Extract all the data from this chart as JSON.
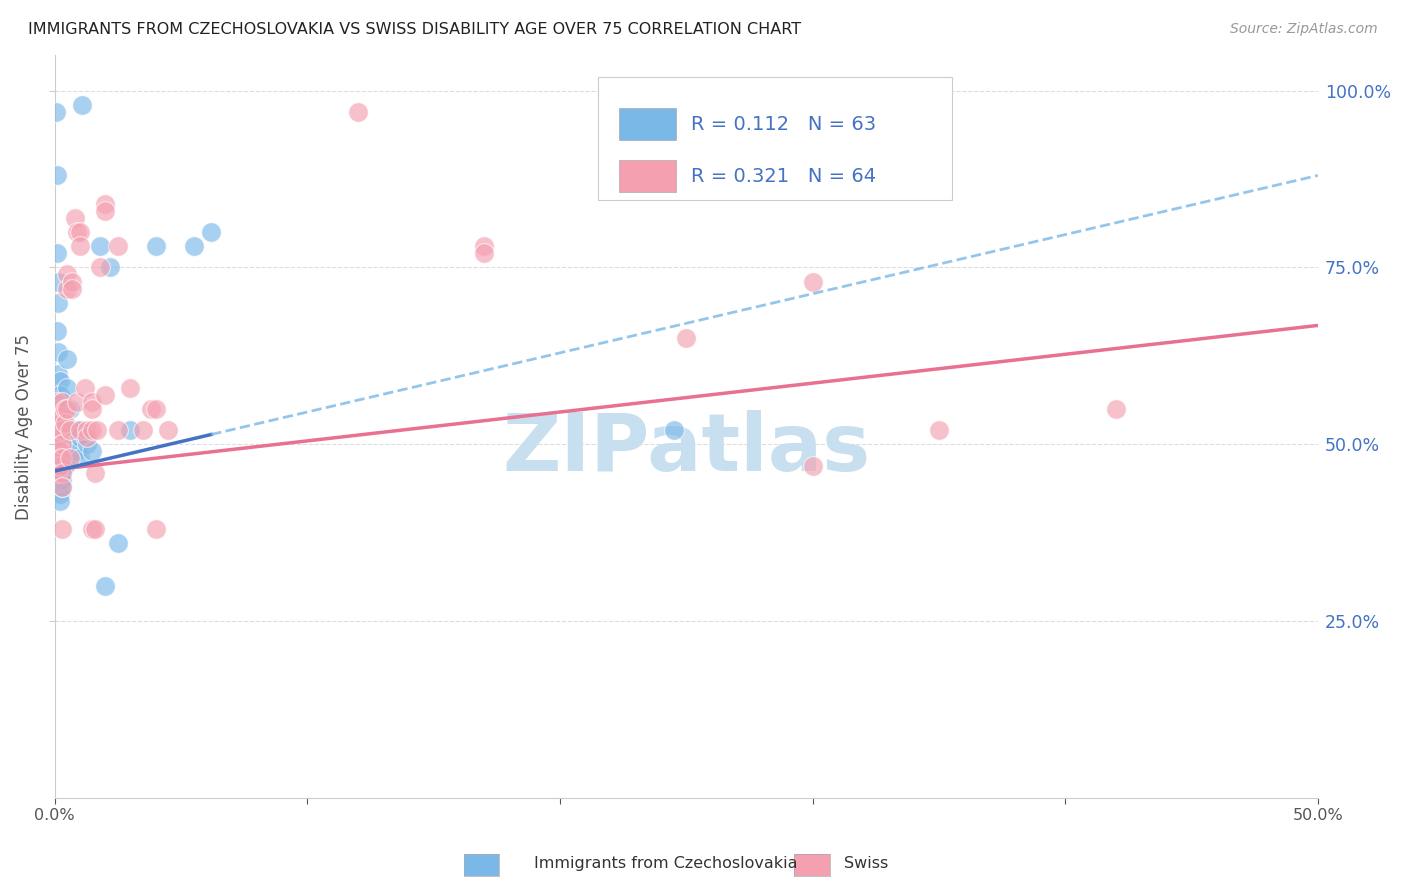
{
  "title": "IMMIGRANTS FROM CZECHOSLOVAKIA VS SWISS DISABILITY AGE OVER 75 CORRELATION CHART",
  "source": "Source: ZipAtlas.com",
  "ylabel": "Disability Age Over 75",
  "legend_label1": "Immigrants from Czechoslovakia",
  "legend_label2": "Swiss",
  "R1": 0.112,
  "N1": 63,
  "R2": 0.321,
  "N2": 64,
  "color_blue": "#7ab8e8",
  "color_pink": "#f4a0b0",
  "color_blue_dark": "#4472c4",
  "color_pink_dark": "#e87090",
  "blue_x": [
    0.0005,
    0.001,
    0.001,
    0.001,
    0.001,
    0.0012,
    0.0012,
    0.0015,
    0.0015,
    0.0015,
    0.0015,
    0.0015,
    0.0015,
    0.002,
    0.002,
    0.002,
    0.002,
    0.002,
    0.002,
    0.002,
    0.002,
    0.002,
    0.002,
    0.002,
    0.002,
    0.003,
    0.003,
    0.003,
    0.003,
    0.003,
    0.003,
    0.003,
    0.003,
    0.003,
    0.004,
    0.004,
    0.004,
    0.004,
    0.005,
    0.005,
    0.005,
    0.006,
    0.006,
    0.007,
    0.007,
    0.008,
    0.009,
    0.009,
    0.01,
    0.01,
    0.011,
    0.012,
    0.013,
    0.015,
    0.018,
    0.02,
    0.022,
    0.025,
    0.03,
    0.04,
    0.055,
    0.062,
    0.245
  ],
  "blue_y": [
    0.97,
    0.88,
    0.77,
    0.66,
    0.55,
    0.73,
    0.63,
    0.7,
    0.6,
    0.55,
    0.5,
    0.48,
    0.46,
    0.59,
    0.57,
    0.55,
    0.53,
    0.51,
    0.49,
    0.47,
    0.46,
    0.45,
    0.44,
    0.43,
    0.42,
    0.56,
    0.54,
    0.52,
    0.5,
    0.48,
    0.47,
    0.46,
    0.45,
    0.44,
    0.52,
    0.5,
    0.48,
    0.47,
    0.62,
    0.58,
    0.55,
    0.55,
    0.51,
    0.52,
    0.49,
    0.51,
    0.52,
    0.49,
    0.51,
    0.48,
    0.98,
    0.51,
    0.5,
    0.49,
    0.78,
    0.3,
    0.75,
    0.36,
    0.52,
    0.78,
    0.78,
    0.8,
    0.52
  ],
  "pink_x": [
    0.001,
    0.001,
    0.001,
    0.001,
    0.001,
    0.001,
    0.002,
    0.002,
    0.002,
    0.002,
    0.002,
    0.003,
    0.003,
    0.003,
    0.003,
    0.003,
    0.003,
    0.003,
    0.003,
    0.004,
    0.004,
    0.005,
    0.005,
    0.005,
    0.006,
    0.006,
    0.007,
    0.007,
    0.008,
    0.009,
    0.009,
    0.01,
    0.01,
    0.01,
    0.012,
    0.013,
    0.013,
    0.015,
    0.015,
    0.015,
    0.015,
    0.016,
    0.016,
    0.017,
    0.018,
    0.02,
    0.02,
    0.02,
    0.025,
    0.025,
    0.03,
    0.035,
    0.038,
    0.04,
    0.04,
    0.045,
    0.12,
    0.17,
    0.17,
    0.25,
    0.3,
    0.3,
    0.35,
    0.42
  ],
  "pink_y": [
    0.52,
    0.5,
    0.48,
    0.46,
    0.54,
    0.56,
    0.53,
    0.51,
    0.49,
    0.48,
    0.47,
    0.56,
    0.54,
    0.52,
    0.5,
    0.48,
    0.46,
    0.44,
    0.38,
    0.55,
    0.53,
    0.74,
    0.72,
    0.55,
    0.52,
    0.48,
    0.73,
    0.72,
    0.82,
    0.8,
    0.56,
    0.8,
    0.78,
    0.52,
    0.58,
    0.52,
    0.51,
    0.56,
    0.55,
    0.52,
    0.38,
    0.46,
    0.38,
    0.52,
    0.75,
    0.84,
    0.83,
    0.57,
    0.78,
    0.52,
    0.58,
    0.52,
    0.55,
    0.55,
    0.38,
    0.52,
    0.97,
    0.78,
    0.77,
    0.65,
    0.73,
    0.47,
    0.52,
    0.55
  ],
  "blue_line_x0": 0.0,
  "blue_line_x_solid_end": 0.062,
  "blue_line_x1": 0.5,
  "blue_line_y0": 0.462,
  "blue_line_y1": 0.88,
  "pink_line_x0": 0.0,
  "pink_line_x1": 0.5,
  "pink_line_y0": 0.464,
  "pink_line_y1": 0.668,
  "xmin": 0.0,
  "xmax": 0.5,
  "ymin": 0.0,
  "ymax": 1.05,
  "yticks": [
    0.25,
    0.5,
    0.75,
    1.0
  ],
  "xticks": [
    0.0,
    0.1,
    0.2,
    0.3,
    0.4,
    0.5
  ],
  "watermark": "ZIPatlas",
  "watermark_color": "#c8dff0",
  "background_color": "#ffffff",
  "grid_color": "#dddddd",
  "right_tick_color": "#4472c4"
}
